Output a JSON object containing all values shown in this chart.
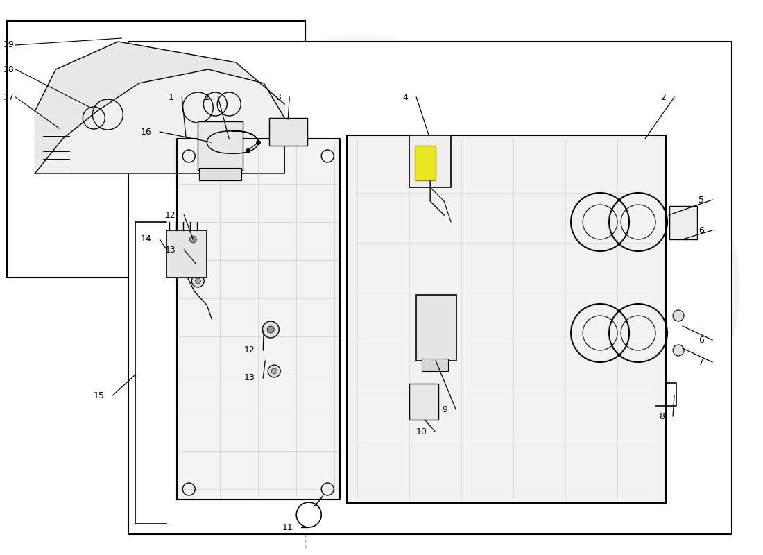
{
  "bg_color": "#ffffff",
  "line_color": "#000000",
  "watermark_color": "#d0d0d0"
}
